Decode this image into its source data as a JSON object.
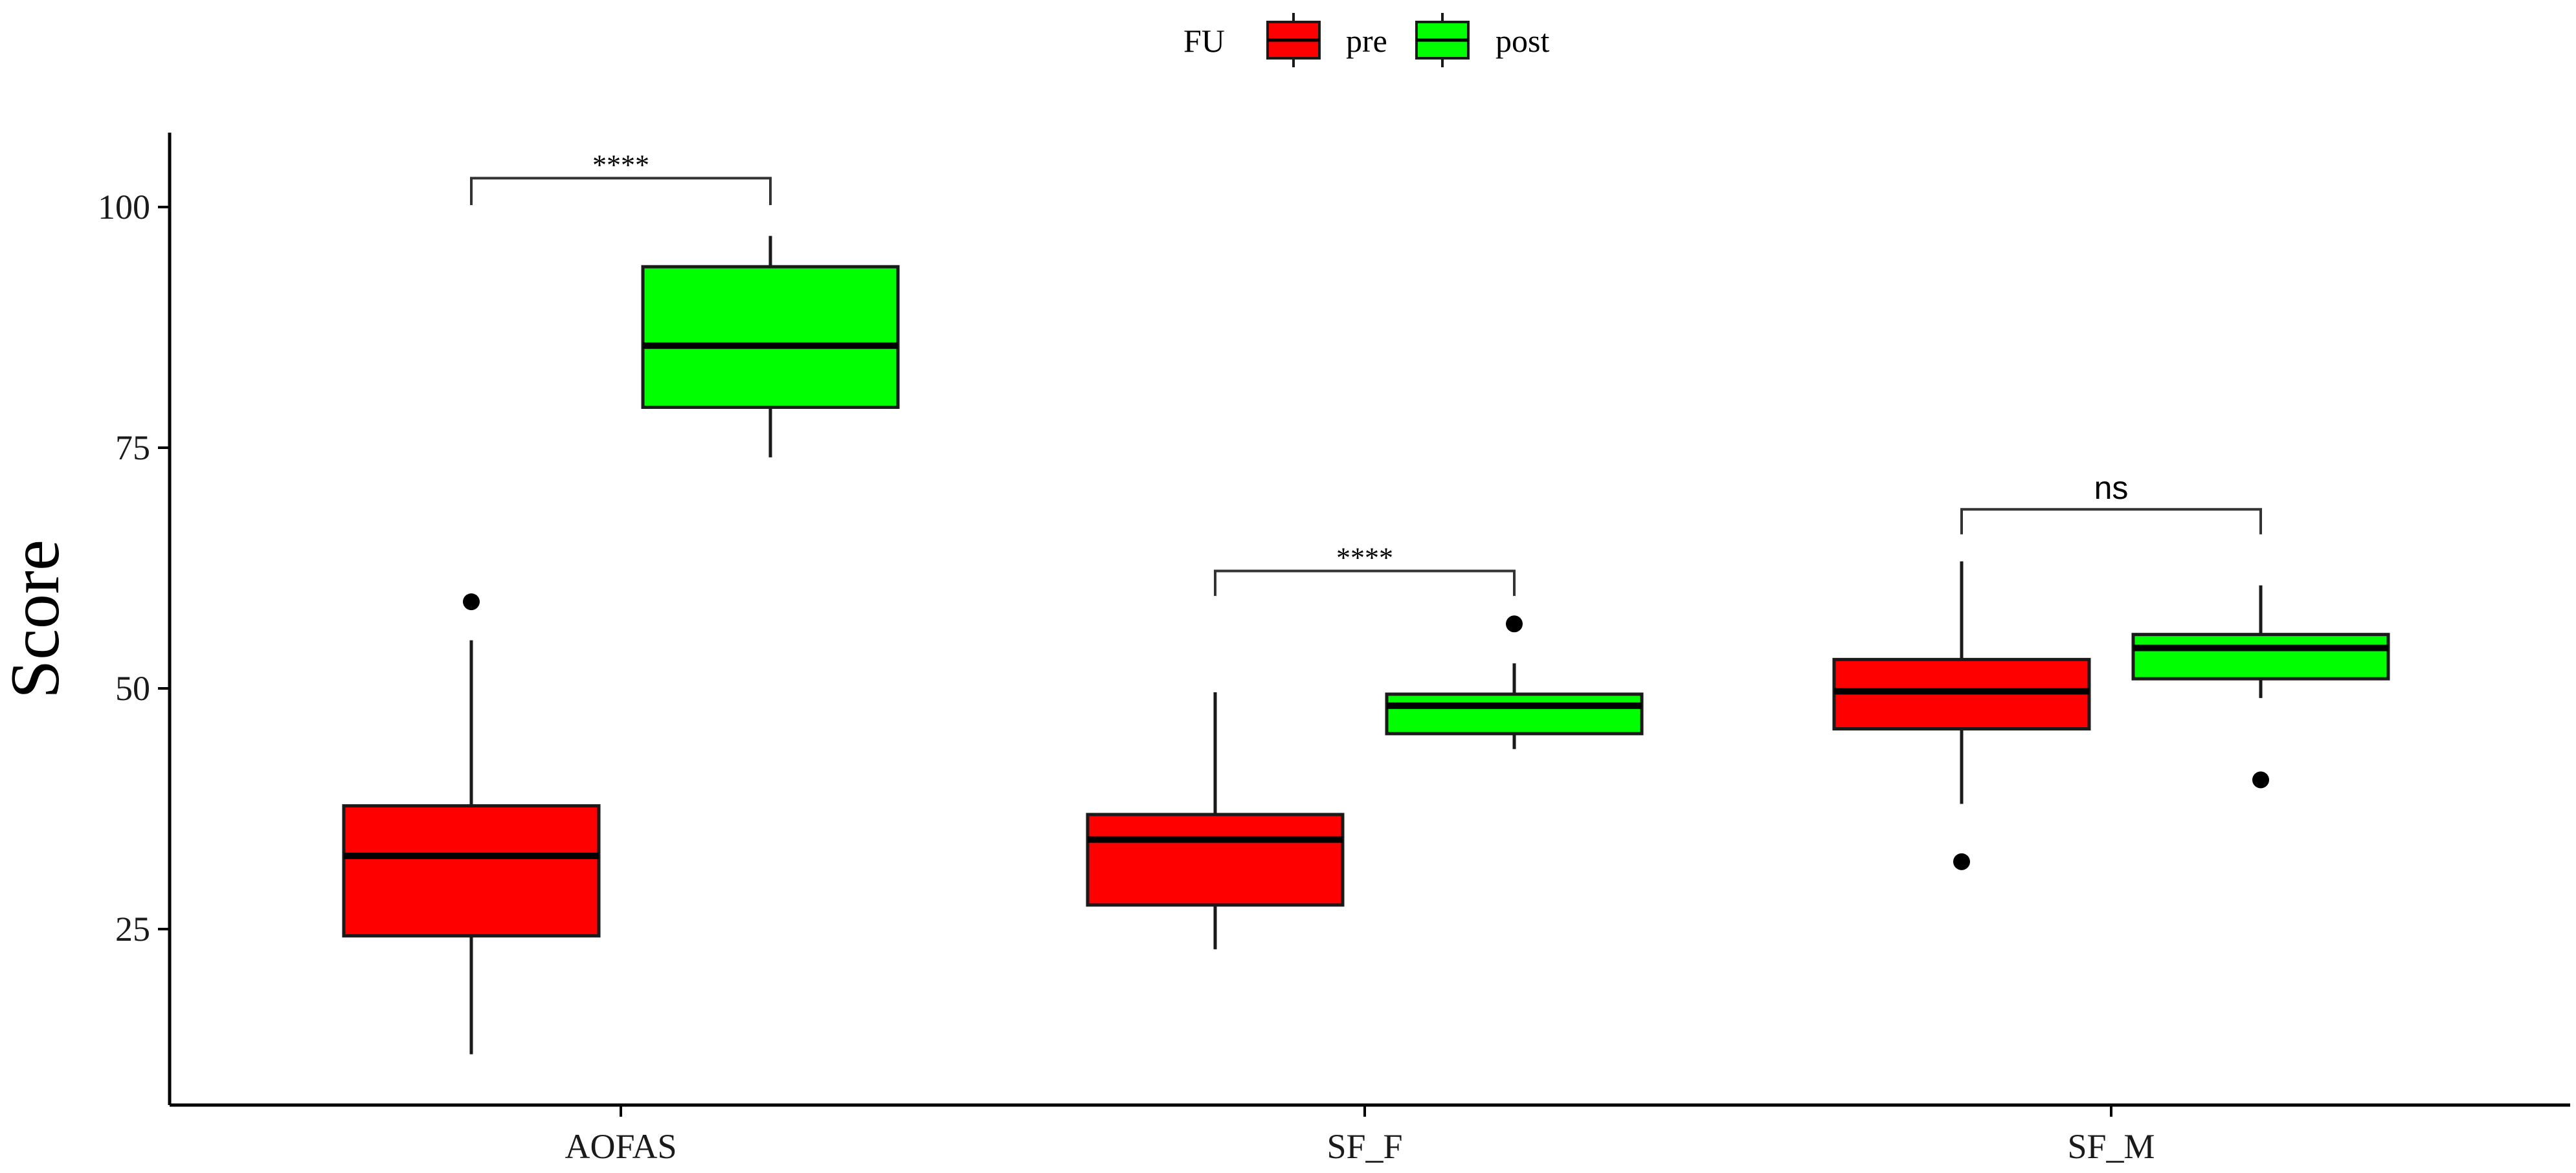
{
  "chart_data": {
    "type": "boxplot",
    "title": "",
    "xlabel": "",
    "ylabel": "Score",
    "ylim": [
      7,
      107
    ],
    "yticks": [
      25,
      50,
      75,
      100
    ],
    "grid": false,
    "legend": {
      "title": "FU",
      "position": "top",
      "entries": [
        {
          "label": "pre",
          "color": "#ff0000"
        },
        {
          "label": "post",
          "color": "#00ff00"
        }
      ]
    },
    "categories": [
      "AOFAS",
      "SF_F",
      "SF_M"
    ],
    "series": [
      {
        "name": "pre",
        "color": "#ff0000",
        "boxes": [
          {
            "q1": 24.3,
            "median": 32.6,
            "q3": 37.8,
            "whisker_low": 12.0,
            "whisker_high": 55.0,
            "outliers": [
              59.0
            ]
          },
          {
            "q1": 27.5,
            "median": 34.3,
            "q3": 36.9,
            "whisker_low": 22.9,
            "whisker_high": 49.6,
            "outliers": []
          },
          {
            "q1": 45.8,
            "median": 49.7,
            "q3": 53.0,
            "whisker_low": 38.0,
            "whisker_high": 63.2,
            "outliers": [
              32.0
            ]
          }
        ]
      },
      {
        "name": "post",
        "color": "#00ff00",
        "boxes": [
          {
            "q1": 79.2,
            "median": 85.6,
            "q3": 93.8,
            "whisker_low": 74.0,
            "whisker_high": 97.0,
            "outliers": []
          },
          {
            "q1": 45.3,
            "median": 48.2,
            "q3": 49.4,
            "whisker_low": 43.7,
            "whisker_high": 52.6,
            "outliers": [
              56.7
            ]
          },
          {
            "q1": 51.0,
            "median": 54.2,
            "q3": 55.6,
            "whisker_low": 49.0,
            "whisker_high": 60.7,
            "outliers": [
              40.5
            ]
          }
        ]
      }
    ],
    "significance": [
      {
        "category": "AOFAS",
        "label": "****",
        "y": 103.0,
        "drop": 2.8
      },
      {
        "category": "SF_F",
        "label": "****",
        "y": 62.2,
        "drop": 2.6
      },
      {
        "category": "SF_M",
        "label": "ns",
        "y": 68.6,
        "drop": 2.6
      }
    ]
  }
}
